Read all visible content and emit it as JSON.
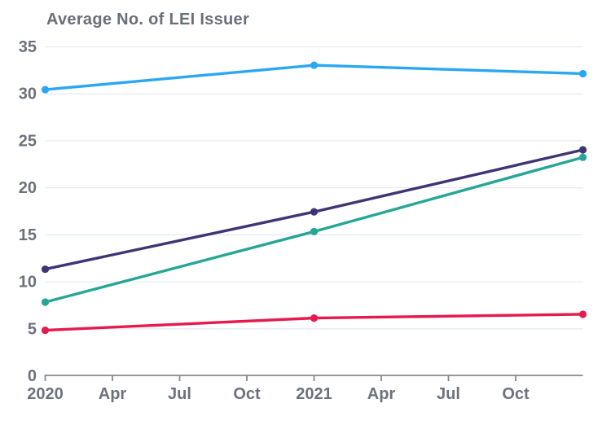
{
  "chart_data": {
    "type": "line",
    "title": "Average No. of LEI Issuer",
    "legend": "none",
    "x_axis": {
      "tick_labels": [
        "2020",
        "Apr",
        "Jul",
        "Oct",
        "2021",
        "Apr",
        "Jul",
        "Oct"
      ],
      "num_slots": 9
    },
    "y_axis": {
      "ticks": [
        0,
        5,
        10,
        15,
        20,
        25,
        30,
        35
      ],
      "range": [
        0,
        35
      ],
      "gridlines": true
    },
    "series": [
      {
        "name": "light-blue-line",
        "color": "#2aa7f2",
        "x_slots": [
          0,
          4,
          8
        ],
        "values": [
          30.4,
          33.0,
          32.1
        ]
      },
      {
        "name": "dark-purple-line",
        "color": "#3f3574",
        "x_slots": [
          0,
          4,
          8
        ],
        "values": [
          11.3,
          17.4,
          24.0
        ]
      },
      {
        "name": "teal-line",
        "color": "#27a695",
        "x_slots": [
          0,
          4,
          8
        ],
        "values": [
          7.8,
          15.3,
          23.2
        ]
      },
      {
        "name": "crimson-line",
        "color": "#e61a4f",
        "x_slots": [
          0,
          4,
          8
        ],
        "values": [
          4.8,
          6.1,
          6.5
        ]
      }
    ]
  },
  "style": {
    "grid_color": "#e5e9f2",
    "axis_color": "#85888f",
    "tick_label_color": "#6d717b",
    "title_color": "#696e79",
    "background": "#ffffff"
  }
}
